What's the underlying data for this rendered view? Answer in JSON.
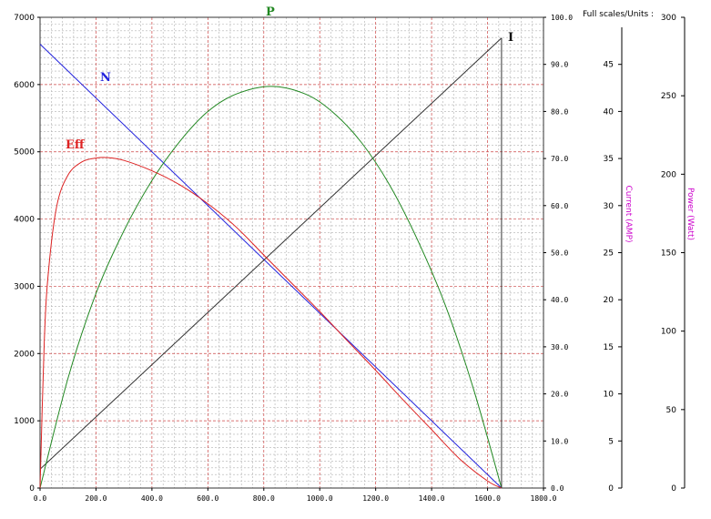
{
  "chart_data": {
    "type": "line",
    "title": "",
    "x": {
      "range": [
        0,
        1800
      ],
      "ticks": [
        "0.0",
        "200.0",
        "400.0",
        "600.0",
        "800.0",
        "1000.0",
        "1200.0",
        "1400.0",
        "1600.0",
        "1800.0"
      ]
    },
    "y_left": {
      "range": [
        0,
        7000
      ],
      "ticks": [
        "0",
        "1000",
        "2000",
        "3000",
        "4000",
        "5000",
        "6000",
        "7000"
      ]
    },
    "y_right": {
      "range": [
        0,
        100
      ],
      "ticks": [
        "0.0",
        "10.0",
        "20.0",
        "30.0",
        "40.0",
        "50.0",
        "60.0",
        "70.0",
        "80.0",
        "90.0",
        "100.0"
      ]
    },
    "current_axis": {
      "label": "Current (AMP)",
      "range": [
        0,
        50
      ],
      "ticks": [
        "0",
        "5",
        "10",
        "15",
        "20",
        "25",
        "30",
        "35",
        "40",
        "45"
      ]
    },
    "power_axis": {
      "label": "Power (Watt)",
      "range": [
        0,
        300
      ],
      "ticks": [
        "0",
        "50",
        "100",
        "150",
        "200",
        "250",
        "300"
      ]
    },
    "full_scales_label": "Full scales/Units :",
    "grid": true,
    "series": [
      {
        "name": "N",
        "color": "#2222dd",
        "axis": "y_left",
        "x": [
          0,
          1650
        ],
        "y": [
          6600,
          0
        ]
      },
      {
        "name": "I",
        "color": "#333333",
        "axis": "current",
        "x": [
          0,
          1650
        ],
        "y": [
          2,
          47.8
        ]
      },
      {
        "name": "P",
        "color": "#228822",
        "axis": "power",
        "x": [
          0,
          100,
          200,
          300,
          400,
          500,
          600,
          700,
          825,
          950,
          1050,
          1150,
          1250,
          1350,
          1450,
          1550,
          1650
        ],
        "y": [
          0,
          70,
          124,
          164,
          196,
          221,
          240,
          251,
          256,
          251,
          239,
          220,
          193,
          158,
          116,
          63,
          0
        ]
      },
      {
        "name": "Eff",
        "color": "#dd2222",
        "axis": "y_right",
        "x": [
          0,
          15,
          30,
          60,
          100,
          150,
          200,
          240,
          300,
          400,
          500,
          600,
          700,
          800,
          900,
          1000,
          1100,
          1200,
          1300,
          1400,
          1500,
          1600,
          1650
        ],
        "y": [
          0,
          31,
          46,
          60,
          66.5,
          69.3,
          70.1,
          70.2,
          69.6,
          67.4,
          64.4,
          60.4,
          55.5,
          49.5,
          43.5,
          37.5,
          31.2,
          25.0,
          18.6,
          12.4,
          6.2,
          1.5,
          0
        ]
      }
    ]
  }
}
